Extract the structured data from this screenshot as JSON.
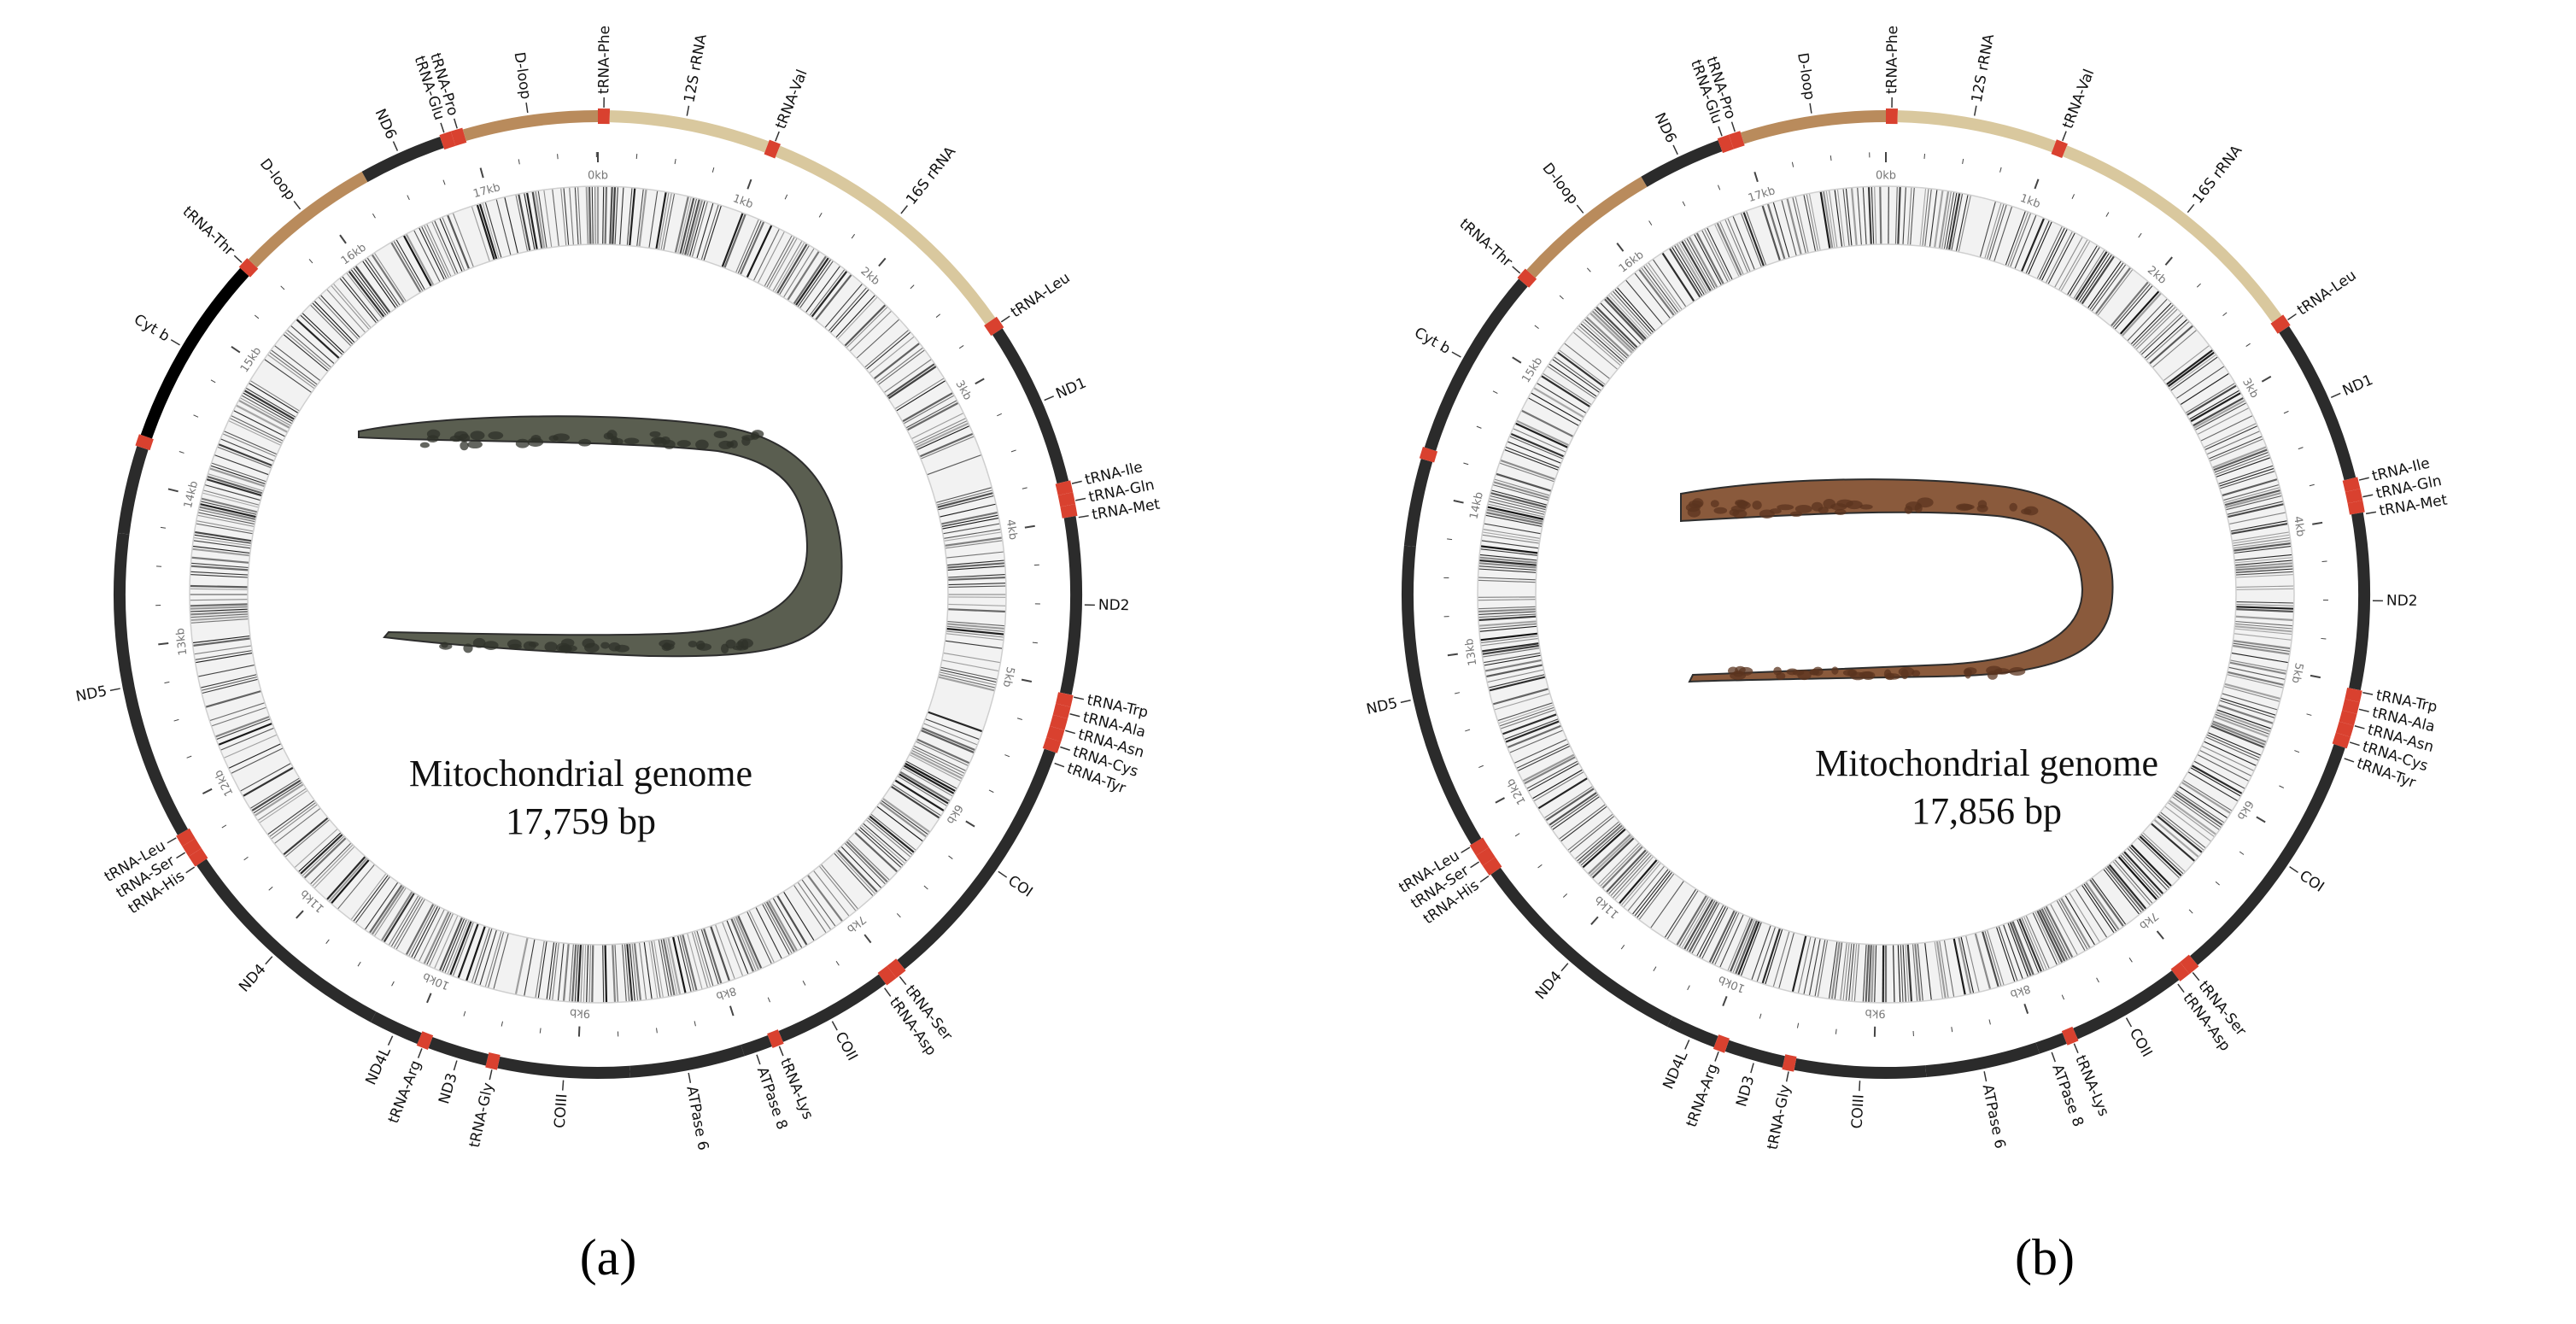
{
  "colors": {
    "protein": "#2b2b2b",
    "rrna": "#d9c89e",
    "dloop": "#b98b5c",
    "trna": "#d9412f",
    "cytb_a": "#000000",
    "track": "#aaaaaa",
    "tick_text": "#777777",
    "label": "#111111",
    "fish_a": "#5a5e50",
    "fish_b": "#8a5a3c"
  },
  "panels": [
    {
      "id": "a",
      "caption_letter": "a",
      "title_line1": "Mitochondrial genome",
      "title_line2": "17,759 bp",
      "genome_length": 17759,
      "fish_icon": "moray-eel-grey-speckled",
      "scale_labels": [
        "0kb",
        "1kb",
        "2kb",
        "3kb",
        "4kb",
        "5kb",
        "6kb",
        "7kb",
        "8kb",
        "9kb",
        "10kb",
        "11kb",
        "12kb",
        "13kb",
        "14kb",
        "15kb",
        "16kb",
        "17kb"
      ],
      "features": [
        {
          "name": "tRNA-Phe",
          "type": "trna",
          "start": 0,
          "end": 70
        },
        {
          "name": "12S rRNA",
          "type": "rrna",
          "start": 70,
          "end": 1020
        },
        {
          "name": "tRNA-Val",
          "type": "trna",
          "start": 1020,
          "end": 1090
        },
        {
          "name": "16S rRNA",
          "type": "rrna",
          "start": 1090,
          "end": 2720
        },
        {
          "name": "tRNA-Leu",
          "type": "trna",
          "start": 2720,
          "end": 2795
        },
        {
          "name": "ND1",
          "type": "protein",
          "start": 2795,
          "end": 3770
        },
        {
          "name": "tRNA-Ile",
          "type": "trna",
          "start": 3770,
          "end": 3840
        },
        {
          "name": "tRNA-Gln",
          "type": "trna",
          "start": 3840,
          "end": 3910
        },
        {
          "name": "tRNA-Met",
          "type": "trna",
          "start": 3910,
          "end": 3980
        },
        {
          "name": "ND2",
          "type": "protein",
          "start": 3980,
          "end": 5030
        },
        {
          "name": "tRNA-Trp",
          "type": "trna",
          "start": 5030,
          "end": 5100
        },
        {
          "name": "tRNA-Ala",
          "type": "trna",
          "start": 5100,
          "end": 5170
        },
        {
          "name": "tRNA-Asn",
          "type": "trna",
          "start": 5170,
          "end": 5240
        },
        {
          "name": "tRNA-Cys",
          "type": "trna",
          "start": 5240,
          "end": 5310
        },
        {
          "name": "tRNA-Tyr",
          "type": "trna",
          "start": 5310,
          "end": 5380
        },
        {
          "name": "COI",
          "type": "protein",
          "start": 5380,
          "end": 6940
        },
        {
          "name": "tRNA-Ser",
          "type": "trna",
          "start": 6940,
          "end": 7010
        },
        {
          "name": "tRNA-Asp",
          "type": "trna",
          "start": 7010,
          "end": 7080
        },
        {
          "name": "COII",
          "type": "protein",
          "start": 7080,
          "end": 7770
        },
        {
          "name": "tRNA-Lys",
          "type": "trna",
          "start": 7770,
          "end": 7840
        },
        {
          "name": "ATPase 8",
          "type": "protein",
          "start": 7840,
          "end": 8010
        },
        {
          "name": "ATPase 6",
          "type": "protein",
          "start": 8010,
          "end": 8690
        },
        {
          "name": "COIII",
          "type": "protein",
          "start": 8690,
          "end": 9470
        },
        {
          "name": "tRNA-Gly",
          "type": "trna",
          "start": 9470,
          "end": 9540
        },
        {
          "name": "ND3",
          "type": "protein",
          "start": 9540,
          "end": 9890
        },
        {
          "name": "tRNA-Arg",
          "type": "trna",
          "start": 9890,
          "end": 9960
        },
        {
          "name": "ND4L",
          "type": "protein",
          "start": 9960,
          "end": 10260
        },
        {
          "name": "ND4",
          "type": "protein",
          "start": 10260,
          "end": 11640
        },
        {
          "name": "tRNA-His",
          "type": "trna",
          "start": 11640,
          "end": 11710
        },
        {
          "name": "tRNA-Ser",
          "type": "trna",
          "start": 11710,
          "end": 11780
        },
        {
          "name": "tRNA-Leu",
          "type": "trna",
          "start": 11780,
          "end": 11850
        },
        {
          "name": "ND5",
          "type": "protein",
          "start": 11850,
          "end": 13680
        },
        {
          "name": "ND6",
          "type": "protein",
          "start": 13680,
          "end": 14200
        },
        {
          "name": "tRNA-Glu",
          "type": "trna",
          "start": 14200,
          "end": 14270
        },
        {
          "name": "Cyt b",
          "type": "cytb",
          "start": 14270,
          "end": 15410
        },
        {
          "name": "tRNA-Thr",
          "type": "trna",
          "start": 15410,
          "end": 15480
        },
        {
          "name": "D-loop",
          "type": "dloop",
          "start": 15480,
          "end": 16320
        },
        {
          "name": "ND6",
          "type": "protein",
          "start": 16320,
          "end": 16820
        },
        {
          "name": "tRNA-Glu",
          "type": "trna",
          "start": 16820,
          "end": 16890
        },
        {
          "name": "tRNA-Pro",
          "type": "trna",
          "start": 16890,
          "end": 16960
        },
        {
          "name": "D-loop",
          "type": "dloop",
          "start": 16960,
          "end": 17759
        }
      ],
      "labels": [
        {
          "text": "tRNA-Phe",
          "pos": 35
        },
        {
          "text": "12S rRNA",
          "pos": 520
        },
        {
          "text": "tRNA-Val",
          "pos": 1055
        },
        {
          "text": "16S rRNA",
          "pos": 1900
        },
        {
          "text": "tRNA-Leu",
          "pos": 2760
        },
        {
          "text": "ND1",
          "pos": 3280
        },
        {
          "text": "tRNA-Ile",
          "pos": 3790
        },
        {
          "text": "tRNA-Gln",
          "pos": 3890
        },
        {
          "text": "tRNA-Met",
          "pos": 3990
        },
        {
          "text": "ND2",
          "pos": 4500
        },
        {
          "text": "tRNA-Trp",
          "pos": 5040
        },
        {
          "text": "tRNA-Ala",
          "pos": 5140
        },
        {
          "text": "tRNA-Asn",
          "pos": 5240
        },
        {
          "text": "tRNA-Cys",
          "pos": 5340
        },
        {
          "text": "tRNA-Tyr",
          "pos": 5440
        },
        {
          "text": "COI",
          "pos": 6150
        },
        {
          "text": "tRNA-Ser",
          "pos": 6990
        },
        {
          "text": "tRNA-Asp",
          "pos": 7100
        },
        {
          "text": "COII",
          "pos": 7460
        },
        {
          "text": "tRNA-Lys",
          "pos": 7800
        },
        {
          "text": "ATPase 8",
          "pos": 7940
        },
        {
          "text": "ATPase 6",
          "pos": 8350
        },
        {
          "text": "COIII",
          "pos": 9080
        },
        {
          "text": "tRNA-Gly",
          "pos": 9500
        },
        {
          "text": "ND3",
          "pos": 9710
        },
        {
          "text": "tRNA-Arg",
          "pos": 9925
        },
        {
          "text": "ND4L",
          "pos": 10110
        },
        {
          "text": "ND4",
          "pos": 10950
        },
        {
          "text": "tRNA-His",
          "pos": 11640
        },
        {
          "text": "tRNA-Ser",
          "pos": 11740
        },
        {
          "text": "tRNA-Leu",
          "pos": 11840
        },
        {
          "text": "ND5",
          "pos": 12770
        },
        {
          "text": "Cyt b",
          "pos": 14840
        },
        {
          "text": "tRNA-Thr",
          "pos": 15440
        },
        {
          "text": "D-loop",
          "pos": 15900
        },
        {
          "text": "ND6",
          "pos": 16560
        },
        {
          "text": "tRNA-Glu",
          "pos": 16850
        },
        {
          "text": "tRNA-Pro",
          "pos": 16930
        },
        {
          "text": "D-loop",
          "pos": 17350
        }
      ]
    },
    {
      "id": "b",
      "caption_letter": "b",
      "title_line1": "Mitochondrial genome",
      "title_line2": "17,856 bp",
      "genome_length": 17856,
      "fish_icon": "moray-eel-brown-spotted",
      "scale_labels": [
        "0kb",
        "1kb",
        "2kb",
        "3kb",
        "4kb",
        "5kb",
        "6kb",
        "7kb",
        "8kb",
        "9kb",
        "10kb",
        "11kb",
        "12kb",
        "13kb",
        "14kb",
        "15kb",
        "16kb",
        "17kb"
      ],
      "features": [
        {
          "name": "tRNA-Phe",
          "type": "trna",
          "start": 0,
          "end": 70
        },
        {
          "name": "12S rRNA",
          "type": "rrna",
          "start": 70,
          "end": 1020
        },
        {
          "name": "tRNA-Val",
          "type": "trna",
          "start": 1020,
          "end": 1090
        },
        {
          "name": "16S rRNA",
          "type": "rrna",
          "start": 1090,
          "end": 2720
        },
        {
          "name": "tRNA-Leu",
          "type": "trna",
          "start": 2720,
          "end": 2795
        },
        {
          "name": "ND1",
          "type": "protein",
          "start": 2795,
          "end": 3770
        },
        {
          "name": "tRNA-Ile",
          "type": "trna",
          "start": 3770,
          "end": 3840
        },
        {
          "name": "tRNA-Gln",
          "type": "trna",
          "start": 3840,
          "end": 3910
        },
        {
          "name": "tRNA-Met",
          "type": "trna",
          "start": 3910,
          "end": 3980
        },
        {
          "name": "ND2",
          "type": "protein",
          "start": 3980,
          "end": 5030
        },
        {
          "name": "tRNA-Trp",
          "type": "trna",
          "start": 5030,
          "end": 5100
        },
        {
          "name": "tRNA-Ala",
          "type": "trna",
          "start": 5100,
          "end": 5170
        },
        {
          "name": "tRNA-Asn",
          "type": "trna",
          "start": 5170,
          "end": 5240
        },
        {
          "name": "tRNA-Cys",
          "type": "trna",
          "start": 5240,
          "end": 5310
        },
        {
          "name": "tRNA-Tyr",
          "type": "trna",
          "start": 5310,
          "end": 5380
        },
        {
          "name": "COI",
          "type": "protein",
          "start": 5380,
          "end": 6940
        },
        {
          "name": "tRNA-Ser",
          "type": "trna",
          "start": 6940,
          "end": 7010
        },
        {
          "name": "tRNA-Asp",
          "type": "trna",
          "start": 7010,
          "end": 7080
        },
        {
          "name": "COII",
          "type": "protein",
          "start": 7080,
          "end": 7770
        },
        {
          "name": "tRNA-Lys",
          "type": "trna",
          "start": 7770,
          "end": 7840
        },
        {
          "name": "ATPase 8",
          "type": "protein",
          "start": 7840,
          "end": 8010
        },
        {
          "name": "ATPase 6",
          "type": "protein",
          "start": 8010,
          "end": 8690
        },
        {
          "name": "COIII",
          "type": "protein",
          "start": 8690,
          "end": 9470
        },
        {
          "name": "tRNA-Gly",
          "type": "trna",
          "start": 9470,
          "end": 9540
        },
        {
          "name": "ND3",
          "type": "protein",
          "start": 9540,
          "end": 9890
        },
        {
          "name": "tRNA-Arg",
          "type": "trna",
          "start": 9890,
          "end": 9960
        },
        {
          "name": "ND4L",
          "type": "protein",
          "start": 9960,
          "end": 10260
        },
        {
          "name": "ND4",
          "type": "protein",
          "start": 10260,
          "end": 11640
        },
        {
          "name": "tRNA-His",
          "type": "trna",
          "start": 11640,
          "end": 11710
        },
        {
          "name": "tRNA-Ser",
          "type": "trna",
          "start": 11710,
          "end": 11780
        },
        {
          "name": "tRNA-Leu",
          "type": "trna",
          "start": 11780,
          "end": 11850
        },
        {
          "name": "ND5",
          "type": "protein",
          "start": 11850,
          "end": 13680
        },
        {
          "name": "ND6",
          "type": "protein",
          "start": 13680,
          "end": 14200
        },
        {
          "name": "tRNA-Glu",
          "type": "trna",
          "start": 14200,
          "end": 14270
        },
        {
          "name": "Cyt b",
          "type": "protein",
          "start": 14270,
          "end": 15410
        },
        {
          "name": "tRNA-Thr",
          "type": "trna",
          "start": 15410,
          "end": 15480
        },
        {
          "name": "D-loop",
          "type": "dloop",
          "start": 15480,
          "end": 16350
        },
        {
          "name": "ND6",
          "type": "protein",
          "start": 16350,
          "end": 16850
        },
        {
          "name": "tRNA-Glu",
          "type": "trna",
          "start": 16850,
          "end": 16920
        },
        {
          "name": "tRNA-Pro",
          "type": "trna",
          "start": 16920,
          "end": 16990
        },
        {
          "name": "D-loop",
          "type": "dloop",
          "start": 16990,
          "end": 17856
        }
      ],
      "labels": [
        {
          "text": "tRNA-Phe",
          "pos": 35
        },
        {
          "text": "12S rRNA",
          "pos": 520
        },
        {
          "text": "tRNA-Val",
          "pos": 1055
        },
        {
          "text": "16S rRNA",
          "pos": 1900
        },
        {
          "text": "tRNA-Leu",
          "pos": 2760
        },
        {
          "text": "ND1",
          "pos": 3280
        },
        {
          "text": "tRNA-Ile",
          "pos": 3790
        },
        {
          "text": "tRNA-Gln",
          "pos": 3890
        },
        {
          "text": "tRNA-Met",
          "pos": 3990
        },
        {
          "text": "ND2",
          "pos": 4500
        },
        {
          "text": "tRNA-Trp",
          "pos": 5040
        },
        {
          "text": "tRNA-Ala",
          "pos": 5140
        },
        {
          "text": "tRNA-Asn",
          "pos": 5240
        },
        {
          "text": "tRNA-Cys",
          "pos": 5340
        },
        {
          "text": "tRNA-Tyr",
          "pos": 5440
        },
        {
          "text": "COI",
          "pos": 6150
        },
        {
          "text": "tRNA-Ser",
          "pos": 6990
        },
        {
          "text": "tRNA-Asp",
          "pos": 7100
        },
        {
          "text": "COII",
          "pos": 7460
        },
        {
          "text": "tRNA-Lys",
          "pos": 7800
        },
        {
          "text": "ATPase 8",
          "pos": 7940
        },
        {
          "text": "ATPase 6",
          "pos": 8350
        },
        {
          "text": "COIII",
          "pos": 9080
        },
        {
          "text": "tRNA-Gly",
          "pos": 9500
        },
        {
          "text": "ND3",
          "pos": 9710
        },
        {
          "text": "tRNA-Arg",
          "pos": 9925
        },
        {
          "text": "ND4L",
          "pos": 10110
        },
        {
          "text": "ND4",
          "pos": 10950
        },
        {
          "text": "tRNA-His",
          "pos": 11640
        },
        {
          "text": "tRNA-Ser",
          "pos": 11740
        },
        {
          "text": "tRNA-Leu",
          "pos": 11840
        },
        {
          "text": "ND5",
          "pos": 12770
        },
        {
          "text": "Cyt b",
          "pos": 14840
        },
        {
          "text": "tRNA-Thr",
          "pos": 15440
        },
        {
          "text": "D-loop",
          "pos": 15950
        },
        {
          "text": "ND6",
          "pos": 16600
        },
        {
          "text": "tRNA-Glu",
          "pos": 16880
        },
        {
          "text": "tRNA-Pro",
          "pos": 16960
        },
        {
          "text": "D-loop",
          "pos": 17420
        }
      ]
    }
  ]
}
